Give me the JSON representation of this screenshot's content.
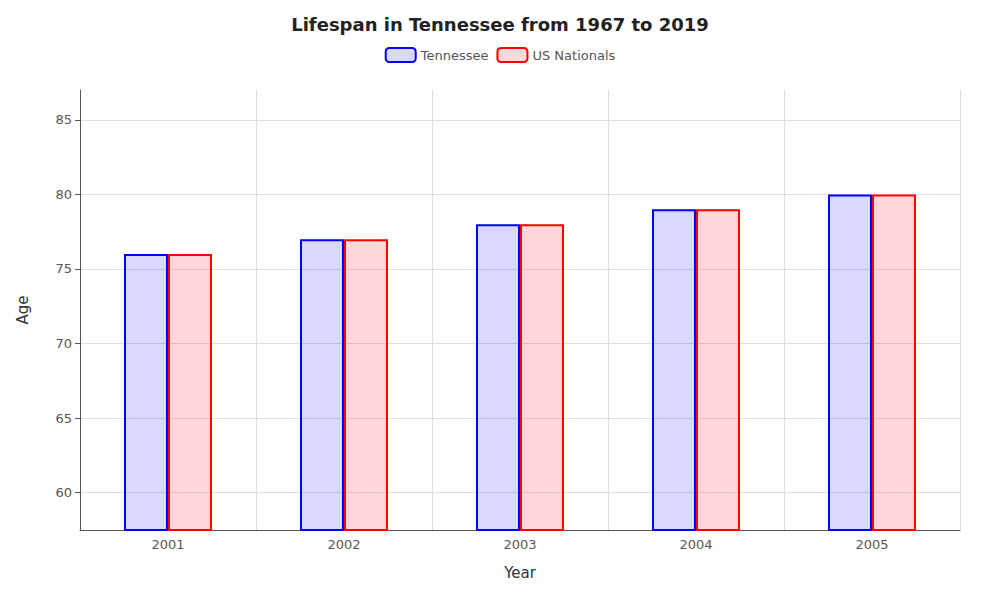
{
  "chart_data": {
    "type": "bar",
    "title": "Lifespan in Tennessee from 1967 to 2019",
    "xlabel": "Year",
    "ylabel": "Age",
    "categories": [
      "2001",
      "2002",
      "2003",
      "2004",
      "2005"
    ],
    "series": [
      {
        "name": "Tennessee",
        "color": "#0000ff",
        "values": [
          76.0,
          77.0,
          78.0,
          79.0,
          80.0
        ]
      },
      {
        "name": "US Nationals",
        "color": "#ff0000",
        "values": [
          76.0,
          77.0,
          78.0,
          79.0,
          80.0
        ]
      }
    ],
    "ylim": [
      57.5,
      87
    ],
    "yticks": [
      60,
      65,
      70,
      75,
      80,
      85
    ],
    "grid": true,
    "legend": "top"
  }
}
